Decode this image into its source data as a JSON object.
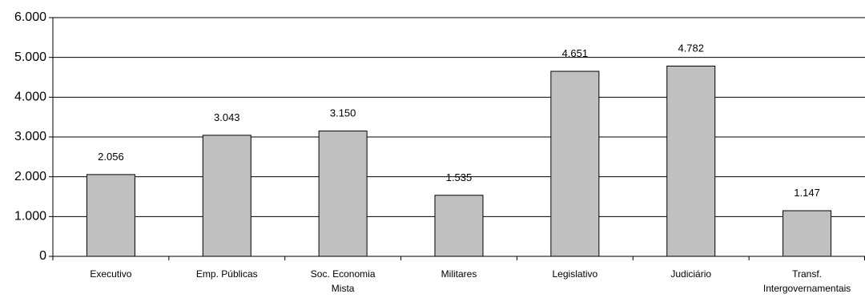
{
  "chart_data": {
    "type": "bar",
    "categories": [
      [
        "Executivo"
      ],
      [
        "Emp. Públicas"
      ],
      [
        "Soc. Economia",
        "Mista"
      ],
      [
        "Militares"
      ],
      [
        "Legislativo"
      ],
      [
        "Judiciário"
      ],
      [
        "Transf.",
        "Intergovernamentais"
      ]
    ],
    "values": [
      2056,
      3043,
      3150,
      1535,
      4651,
      4782,
      1147
    ],
    "value_labels": [
      "2.056",
      "3.043",
      "3.150",
      "1.535",
      "4.651",
      "4.782",
      "1.147"
    ],
    "ylim": [
      0,
      6000
    ],
    "yticks": [
      0,
      1000,
      2000,
      3000,
      4000,
      5000,
      6000
    ],
    "ytick_labels": [
      "0",
      "1.000",
      "2.000",
      "3.000",
      "4.000",
      "5.000",
      "6.000"
    ],
    "grid": true,
    "bar_color": "#c0c0c0",
    "title": "",
    "xlabel": "",
    "ylabel": ""
  }
}
